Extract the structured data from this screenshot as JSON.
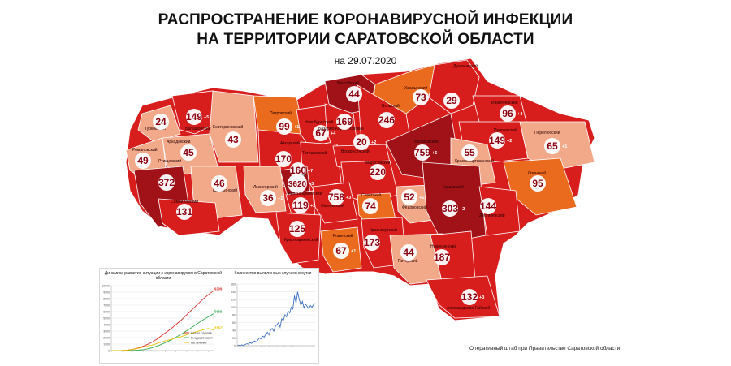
{
  "header": {
    "title_line1": "РАСПРОСТРАНЕНИЕ КОРОНАВИРУСНОЙ ИНФЕКЦИИ",
    "title_line2": "НА ТЕРРИТОРИИ САРАТОВСКОЙ ОБЛАСТИ",
    "date": "на 29.07.2020"
  },
  "footer": "Оперативный штаб при Правительстве Саратовской области",
  "colors": {
    "light": "#f2a98a",
    "orange": "#ea6a1e",
    "red": "#d81d1d",
    "dark": "#a01218",
    "background": "#ffffff"
  },
  "districts": [
    {
      "name": "Балтайский",
      "count": "44"
    },
    {
      "name": "Хвалынский",
      "count": "73"
    },
    {
      "name": "Духовницкий",
      "count": "29"
    },
    {
      "name": "Ивантеевский",
      "count": "96",
      "delta": "+4"
    },
    {
      "name": "Турковский",
      "count": "24"
    },
    {
      "name": "Балашовский",
      "count": "149",
      "delta": "+5"
    },
    {
      "name": "Петровский",
      "count": "99",
      "delta": "+1"
    },
    {
      "name": "Новобурасский",
      "count": "67",
      "delta": "+4"
    },
    {
      "name": "Базарно-Карабулакский",
      "count": "169"
    },
    {
      "name": "Вольский",
      "count": "246"
    },
    {
      "name": "Екатериновский",
      "count": "43"
    },
    {
      "name": "Аркадакский",
      "count": "45"
    },
    {
      "name": "Романовский",
      "count": "49"
    },
    {
      "name": "Аткарский",
      "count": "170"
    },
    {
      "name": "Татищевский",
      "count": "160",
      "delta": "+7"
    },
    {
      "name": "Воскресенский",
      "count": "20",
      "delta": "+2"
    },
    {
      "name": "Балаковский",
      "count": "759",
      "delta": "+5"
    },
    {
      "name": "Пугачевский",
      "count": "149",
      "delta": "+2"
    },
    {
      "name": "Перелюбский",
      "count": "65",
      "delta": "+1"
    },
    {
      "name": "Краснопартизанский",
      "count": "55"
    },
    {
      "name": "Ртищевский",
      "count": "372"
    },
    {
      "name": "Калининский",
      "count": "46"
    },
    {
      "name": "Лысогорский",
      "count": "36",
      "delta": "+1"
    },
    {
      "name": "Саратов",
      "count": "3620",
      "delta": "+3"
    },
    {
      "name": "Марксовский",
      "count": "220"
    },
    {
      "name": "Озинский",
      "count": "95"
    },
    {
      "name": "Энгельсский",
      "count": "758",
      "delta": "+3"
    },
    {
      "name": "Красноармейский",
      "count": "119",
      "delta": "+2"
    },
    {
      "name": "Советский",
      "count": "74"
    },
    {
      "name": "Фёдоровский",
      "count": "52",
      "delta": "+1"
    },
    {
      "name": "Ершовский",
      "count": "303",
      "delta": "+2"
    },
    {
      "name": "Дергачевский",
      "count": "144"
    },
    {
      "name": "Самойловский",
      "count": "131"
    },
    {
      "name": "Красноармейский",
      "count": "125"
    },
    {
      "name": "Ровенский",
      "count": "67",
      "delta": "+1"
    },
    {
      "name": "Краснокутский",
      "count": "173"
    },
    {
      "name": "Питерский",
      "count": "44"
    },
    {
      "name": "Новоузенский",
      "count": "187"
    },
    {
      "name": "Александрово-Гайский",
      "count": "132",
      "delta": "+3"
    }
  ],
  "chart_data": [
    {
      "type": "line",
      "title": "Динамика развития ситуации с коронавирусом в Саратовской области",
      "ylim": [
        0,
        10000
      ],
      "yticks": [
        "0",
        "1000",
        "2000",
        "3000",
        "4000",
        "5000",
        "6000",
        "7000",
        "8000",
        "9000",
        "10000"
      ],
      "x": [
        1,
        2,
        3,
        4,
        5,
        6,
        7,
        8,
        9,
        10,
        11,
        12,
        13,
        14,
        15,
        16,
        17,
        18,
        19,
        20
      ],
      "series": [
        {
          "name": "Кол-во случаев",
          "color": "#d9302b",
          "end_label": "9209",
          "values": [
            0,
            10,
            30,
            80,
            200,
            400,
            700,
            1050,
            1500,
            2100,
            2700,
            3300,
            4000,
            4700,
            5500,
            6300,
            7100,
            7900,
            8600,
            9209
          ]
        },
        {
          "name": "Выздоровевших",
          "color": "#34a853",
          "end_label": "5668",
          "values": [
            0,
            0,
            0,
            5,
            20,
            60,
            150,
            300,
            550,
            850,
            1200,
            1600,
            2050,
            2550,
            3050,
            3600,
            4150,
            4700,
            5200,
            5668
          ]
        },
        {
          "name": "На лечении",
          "color": "#e6c200",
          "end_label": "3167",
          "values": [
            0,
            10,
            30,
            75,
            180,
            340,
            550,
            750,
            950,
            1250,
            1500,
            1700,
            1950,
            2150,
            2450,
            2700,
            2950,
            3200,
            3400,
            3167
          ]
        }
      ]
    },
    {
      "type": "line",
      "title": "Количество выявленных случаев в сутки",
      "ylim": [
        0,
        160
      ],
      "yticks": [
        "0",
        "20",
        "40",
        "60",
        "80",
        "100",
        "120",
        "140",
        "160"
      ],
      "series": [
        {
          "name": "",
          "color": "#3b6fc2",
          "values": [
            0,
            1,
            0,
            2,
            1,
            3,
            5,
            4,
            8,
            6,
            10,
            12,
            9,
            15,
            20,
            18,
            25,
            22,
            30,
            35,
            28,
            40,
            45,
            38,
            50,
            55,
            60,
            48,
            70,
            65,
            80,
            75,
            90,
            85,
            100,
            95,
            130,
            110,
            140,
            120,
            105,
            115,
            98,
            108,
            102,
            96,
            104,
            100,
            106,
            110
          ]
        }
      ]
    }
  ]
}
